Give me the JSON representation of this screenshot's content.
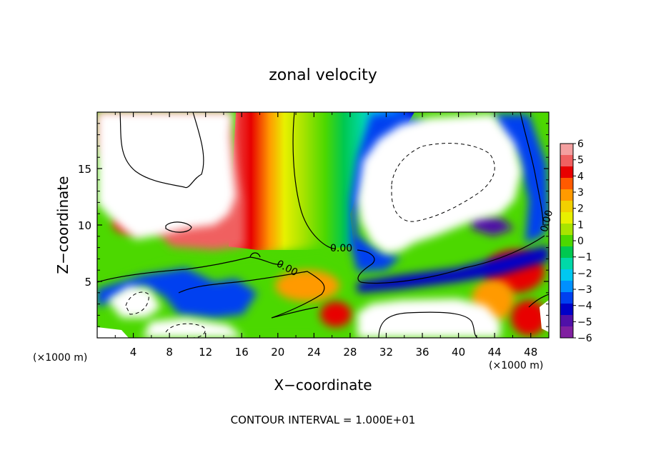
{
  "chart_data": {
    "type": "heatmap",
    "title": "zonal velocity",
    "xlabel": "X−coordinate",
    "ylabel": "Z−coordinate",
    "x_unit": "(×1000 m)",
    "x_unit_right": "(×1000 m)",
    "xlim": [
      0,
      50
    ],
    "ylim": [
      0,
      20
    ],
    "x_ticks": [
      "4",
      "8",
      "12",
      "16",
      "20",
      "24",
      "28",
      "32",
      "36",
      "40",
      "44",
      "48"
    ],
    "y_ticks": [
      "5",
      "10",
      "15"
    ],
    "colorbar": {
      "ticks": [
        "6",
        "5",
        "4",
        "3",
        "2",
        "1",
        "0",
        "−1",
        "−2",
        "−3",
        "−4",
        "−5",
        "−6"
      ],
      "range": [
        -6,
        6
      ],
      "colors": [
        "#f4a0a0",
        "#f06060",
        "#e80000",
        "#ff5a00",
        "#ff9a00",
        "#f2d000",
        "#e8f000",
        "#a8e400",
        "#4cd800",
        "#00c850",
        "#00d8a8",
        "#00c8f0",
        "#0090ff",
        "#0040f0",
        "#0000c8",
        "#5010a8",
        "#8020a0"
      ]
    },
    "contour_labels": [
      "0.00",
      "0.00",
      "0.00"
    ],
    "contour_interval": "CONTOUR INTERVAL = 1.000E+01",
    "grid": false
  }
}
